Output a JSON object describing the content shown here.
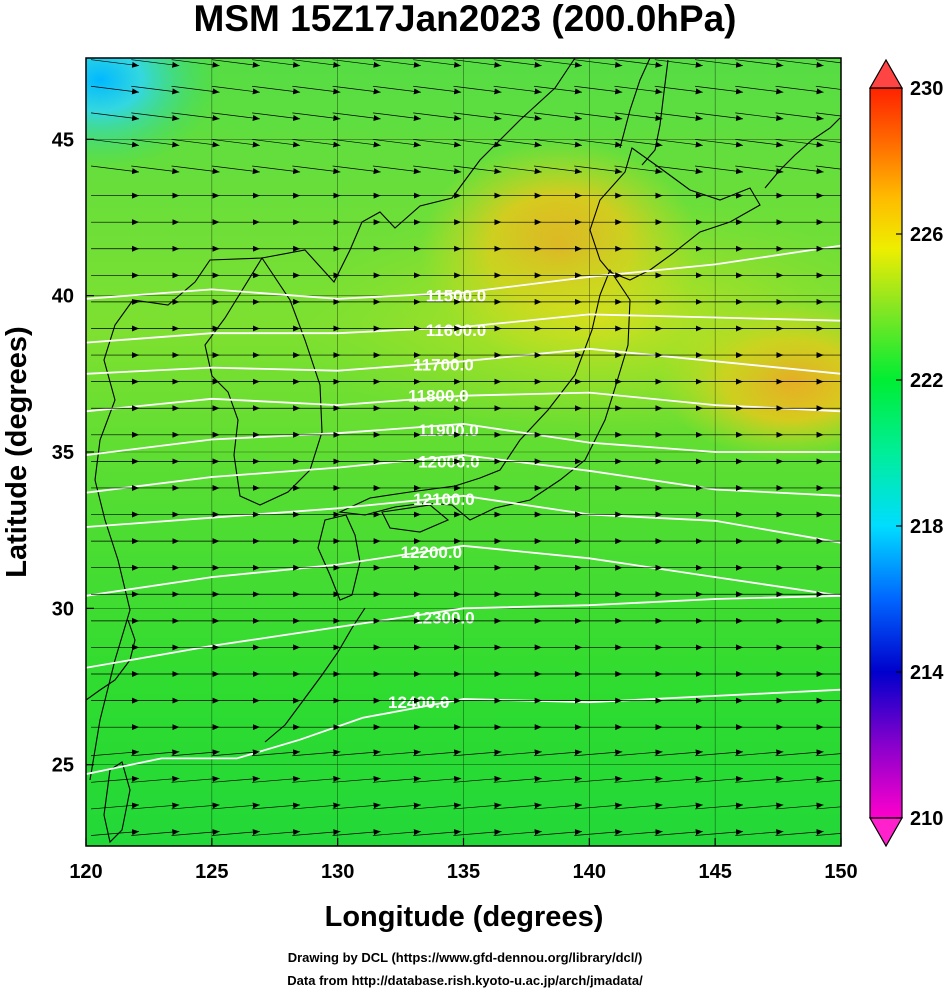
{
  "chart_data": {
    "type": "heatmap",
    "title": "MSM 15Z17Jan2023 (200.0hPa)",
    "xlabel": "Longitude (degrees)",
    "ylabel": "Latitude  (degrees)",
    "xlim": [
      120,
      150
    ],
    "ylim": [
      22.4,
      47.6
    ],
    "xticks": [
      120,
      125,
      130,
      135,
      140,
      145,
      150
    ],
    "xtick_labels": [
      "120",
      "125",
      "130",
      "135",
      "140",
      "145",
      "150"
    ],
    "yticks": [
      25,
      30,
      35,
      40,
      45
    ],
    "ytick_labels": [
      "25",
      "30",
      "35",
      "40",
      "45"
    ],
    "grid": true,
    "colorbar": {
      "range": [
        210,
        230
      ],
      "ticks": [
        210,
        214,
        218,
        222,
        226,
        230
      ],
      "tick_labels": [
        "210",
        "214",
        "218",
        "222",
        "226",
        "230"
      ],
      "colors": [
        "#ff00cc",
        "#9900cc",
        "#3300dd",
        "#0044ff",
        "#0099ff",
        "#00eeff",
        "#00ff99",
        "#00ee44",
        "#33dd33",
        "#99e622",
        "#eeee00",
        "#ffcc00",
        "#ff8800",
        "#ff4400",
        "#ff0000"
      ]
    },
    "temperature_field": {
      "base": 222.5,
      "features": [
        {
          "name": "cold core",
          "lon": 121,
          "lat": 47,
          "value": 218
        },
        {
          "name": "warm band north",
          "lon": 138,
          "lat": 42,
          "value": 226
        },
        {
          "name": "warm band east",
          "lon": 148,
          "lat": 38,
          "value": 226.5
        },
        {
          "name": "southern field",
          "lon": 135,
          "lat": 25,
          "value": 222
        }
      ]
    },
    "contours": [
      {
        "value": 11500,
        "label": "11500.0",
        "label_lon": 133.5,
        "label_lat": 40.0,
        "points": [
          [
            120,
            39.9
          ],
          [
            125,
            40.2
          ],
          [
            130,
            39.9
          ],
          [
            135,
            40.1
          ],
          [
            140,
            40.6
          ],
          [
            145,
            41.0
          ],
          [
            150,
            41.6
          ]
        ]
      },
      {
        "value": 11600,
        "label": "11600.0",
        "label_lon": 133.5,
        "label_lat": 38.9,
        "points": [
          [
            120,
            38.5
          ],
          [
            125,
            38.8
          ],
          [
            130,
            38.8
          ],
          [
            135,
            39.0
          ],
          [
            140,
            39.4
          ],
          [
            145,
            39.3
          ],
          [
            150,
            39.2
          ]
        ]
      },
      {
        "value": 11700,
        "label": "11700.0",
        "label_lon": 133.0,
        "label_lat": 37.8,
        "points": [
          [
            120,
            37.5
          ],
          [
            125,
            37.7
          ],
          [
            130,
            37.6
          ],
          [
            135,
            37.9
          ],
          [
            140,
            38.3
          ],
          [
            145,
            37.9
          ],
          [
            150,
            37.5
          ]
        ]
      },
      {
        "value": 11800,
        "label": "11800.0",
        "label_lon": 132.8,
        "label_lat": 36.8,
        "points": [
          [
            120,
            36.3
          ],
          [
            125,
            36.7
          ],
          [
            130,
            36.5
          ],
          [
            135,
            36.8
          ],
          [
            140,
            36.9
          ],
          [
            145,
            36.5
          ],
          [
            150,
            36.3
          ]
        ]
      },
      {
        "value": 11900,
        "label": "11900.0",
        "label_lon": 133.2,
        "label_lat": 35.7,
        "points": [
          [
            120,
            34.9
          ],
          [
            125,
            35.4
          ],
          [
            130,
            35.6
          ],
          [
            135,
            35.9
          ],
          [
            140,
            35.3
          ],
          [
            145,
            35.0
          ],
          [
            150,
            35.0
          ]
        ]
      },
      {
        "value": 12000,
        "label": "12000.0",
        "label_lon": 133.2,
        "label_lat": 34.7,
        "points": [
          [
            120,
            33.7
          ],
          [
            125,
            34.2
          ],
          [
            130,
            34.5
          ],
          [
            135,
            34.9
          ],
          [
            140,
            34.4
          ],
          [
            145,
            33.8
          ],
          [
            150,
            33.6
          ]
        ]
      },
      {
        "value": 12100,
        "label": "12100.0",
        "label_lon": 133.0,
        "label_lat": 33.5,
        "points": [
          [
            120,
            32.6
          ],
          [
            125,
            32.9
          ],
          [
            130,
            33.2
          ],
          [
            135,
            33.6
          ],
          [
            140,
            33.0
          ],
          [
            145,
            32.8
          ],
          [
            150,
            32.1
          ]
        ]
      },
      {
        "value": 12200,
        "label": "12200.0",
        "label_lon": 132.5,
        "label_lat": 31.8,
        "points": [
          [
            120,
            30.4
          ],
          [
            125,
            31.0
          ],
          [
            130,
            31.4
          ],
          [
            135,
            32.0
          ],
          [
            140,
            31.6
          ],
          [
            145,
            31.0
          ],
          [
            150,
            30.4
          ]
        ]
      },
      {
        "value": 12300,
        "label": "12300.0",
        "label_lon": 133.0,
        "label_lat": 29.7,
        "points": [
          [
            120,
            28.1
          ],
          [
            125,
            28.8
          ],
          [
            130,
            29.4
          ],
          [
            135,
            30.0
          ],
          [
            140,
            30.1
          ],
          [
            145,
            30.3
          ],
          [
            150,
            30.4
          ]
        ]
      },
      {
        "value": 12400,
        "label": "12400.0",
        "label_lon": 132.0,
        "label_lat": 27.0,
        "points": [
          [
            120,
            24.7
          ],
          [
            123,
            25.2
          ],
          [
            126,
            25.2
          ],
          [
            128.5,
            25.8
          ],
          [
            131,
            26.5
          ],
          [
            135,
            27.1
          ],
          [
            140,
            27.0
          ],
          [
            145,
            27.2
          ],
          [
            150,
            27.4
          ]
        ]
      }
    ],
    "wind": {
      "direction": "westerly",
      "lon_step": 1.6,
      "lat_step": 0.85
    }
  },
  "footer": {
    "line1": "Drawing by DCL (https://www.gfd-dennou.org/library/dcl/)",
    "line2": "Data from http://database.rish.kyoto-u.ac.jp/arch/jmadata/"
  }
}
